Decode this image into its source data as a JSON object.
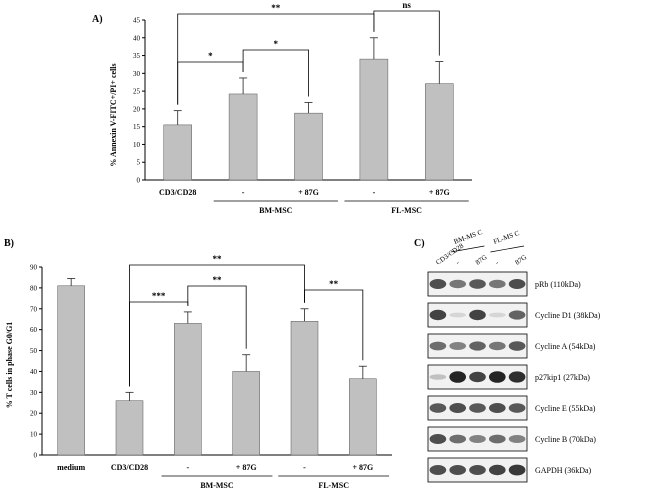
{
  "panel_a": {
    "letter": "A)",
    "chart_data": {
      "type": "bar",
      "ylabel": "% Annexin V-FITC+/PI+ cells",
      "ylim": [
        0,
        45
      ],
      "yticks": [
        0,
        5,
        10,
        15,
        20,
        25,
        30,
        35,
        40,
        45
      ],
      "categories": [
        "CD3/CD28",
        "-",
        "+ 87G",
        "-",
        "+ 87G"
      ],
      "groups": [
        {
          "label": "BM-MSC",
          "members": [
            1,
            2
          ]
        },
        {
          "label": "FL-MSC",
          "members": [
            3,
            4
          ]
        }
      ],
      "values": [
        15.5,
        24.2,
        18.8,
        34.0,
        27.1
      ],
      "errors": [
        4.0,
        4.5,
        3.0,
        6.0,
        6.2
      ],
      "bar_color": "#c0c0c0",
      "significance": [
        {
          "from": 0,
          "to": 1,
          "label": "*"
        },
        {
          "from": 1,
          "to": 2,
          "label": "*"
        },
        {
          "from": 0,
          "to": 3,
          "label": "**"
        },
        {
          "from": 3,
          "to": 4,
          "label": "ns"
        }
      ]
    }
  },
  "panel_b": {
    "letter": "B)",
    "chart_data": {
      "type": "bar",
      "ylabel": "% T cells in phase G0/G1",
      "ylim": [
        0,
        90
      ],
      "yticks": [
        0,
        10,
        20,
        30,
        40,
        50,
        60,
        70,
        80,
        90
      ],
      "categories": [
        "medium",
        "CD3/CD28",
        "-",
        "+ 87G",
        "-",
        "+ 87G"
      ],
      "groups": [
        {
          "label": "BM-MSC",
          "members": [
            2,
            3
          ]
        },
        {
          "label": "FL-MSC",
          "members": [
            4,
            5
          ]
        }
      ],
      "values": [
        81.0,
        26.0,
        63.0,
        40.0,
        64.0,
        36.5
      ],
      "errors": [
        3.5,
        4.0,
        5.5,
        8.0,
        6.0,
        6.0
      ],
      "bar_color": "#c0c0c0",
      "significance": [
        {
          "from": 1,
          "to": 2,
          "label": "***"
        },
        {
          "from": 2,
          "to": 3,
          "label": "**"
        },
        {
          "from": 1,
          "to": 4,
          "label": "**"
        },
        {
          "from": 4,
          "to": 5,
          "label": "**"
        }
      ]
    }
  },
  "panel_c": {
    "letter": "C)",
    "columns": [
      "CD3/CD28",
      "-",
      "87G",
      "-",
      "87G"
    ],
    "column_groups": [
      {
        "label": "BM-MS C",
        "members": [
          1,
          2
        ]
      },
      {
        "label": "FL-MS C",
        "members": [
          3,
          4
        ]
      }
    ],
    "bands": [
      {
        "label": "pRb (110kDa)",
        "intensities": [
          0.75,
          0.55,
          0.7,
          0.55,
          0.75
        ]
      },
      {
        "label": "Cycline D1 (38kDa)",
        "intensities": [
          0.8,
          0.1,
          0.8,
          0.1,
          0.65
        ]
      },
      {
        "label": "Cycline A (54kDa)",
        "intensities": [
          0.6,
          0.5,
          0.65,
          0.55,
          0.7
        ]
      },
      {
        "label": "p27kip1 (27kDa)",
        "intensities": [
          0.2,
          0.95,
          0.8,
          0.95,
          0.9
        ]
      },
      {
        "label": "Cycline E (55kDa)",
        "intensities": [
          0.7,
          0.75,
          0.7,
          0.75,
          0.7
        ]
      },
      {
        "label": "Cycline B (70kDa)",
        "intensities": [
          0.75,
          0.6,
          0.5,
          0.6,
          0.5
        ]
      },
      {
        "label": "GAPDH (36kDa)",
        "intensities": [
          0.75,
          0.75,
          0.75,
          0.8,
          0.85
        ]
      }
    ]
  }
}
